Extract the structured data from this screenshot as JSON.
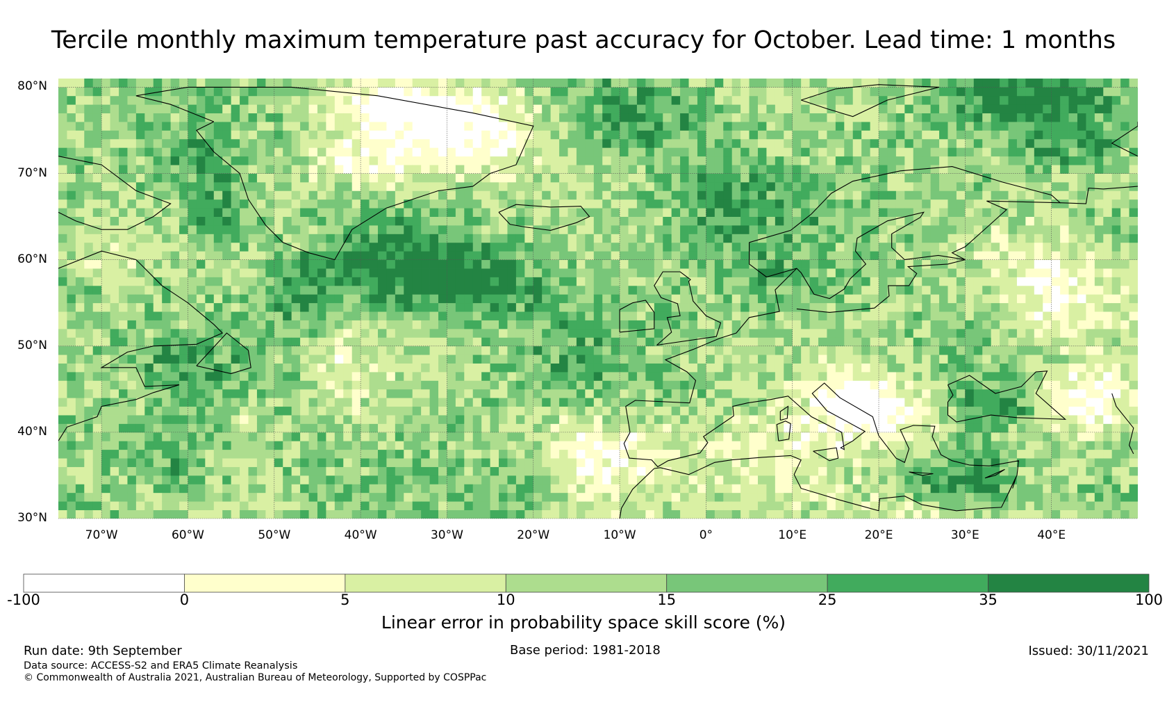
{
  "title": "Tercile monthly maximum temperature past accuracy for October. Lead time: 1 months",
  "map": {
    "projection": "plate-carree",
    "lon_range": [
      -75,
      50
    ],
    "lat_range": [
      30,
      81
    ],
    "lat_ticks": [
      "80°N",
      "70°N",
      "60°N",
      "50°N",
      "40°N",
      "30°N"
    ],
    "lon_ticks": [
      "70°W",
      "60°W",
      "50°W",
      "40°W",
      "30°W",
      "20°W",
      "10°W",
      "0°",
      "10°E",
      "20°E",
      "30°E",
      "40°E"
    ],
    "gridlines": true,
    "coastline_color": "#000000",
    "field": "Linear error in probability space skill score",
    "pattern_summary": {
      "strongest_skill": [
        "Irminger/North Atlantic subpolar gyre",
        "Labrador Sea",
        "Barents Sea",
        "Black Sea",
        "eastern Mediterranean"
      ],
      "weakest_skill": [
        "Greenland interior",
        "Iberia and southern France",
        "Italy/Balkans",
        "Caspian region",
        "North Africa"
      ]
    }
  },
  "colorbar": {
    "boundaries": [
      "-100",
      "0",
      "5",
      "10",
      "15",
      "25",
      "35",
      "100"
    ],
    "colors": [
      "#ffffff",
      "#ffffcc",
      "#d9f0a3",
      "#addd8e",
      "#78c679",
      "#41ab5d",
      "#238443"
    ],
    "label": "Linear error in probability space skill score (%)"
  },
  "footer": {
    "run_date": "Run date: 9th September",
    "base_period": "Base period: 1981-2018",
    "issued": "Issued: 30/11/2021",
    "data_source": "Data source: ACCESS-S2 and ERA5 Climate Reanalysis",
    "copyright": "© Commonwealth of Australia 2021, Australian Bureau of Meteorology, Supported by COSPPac"
  }
}
